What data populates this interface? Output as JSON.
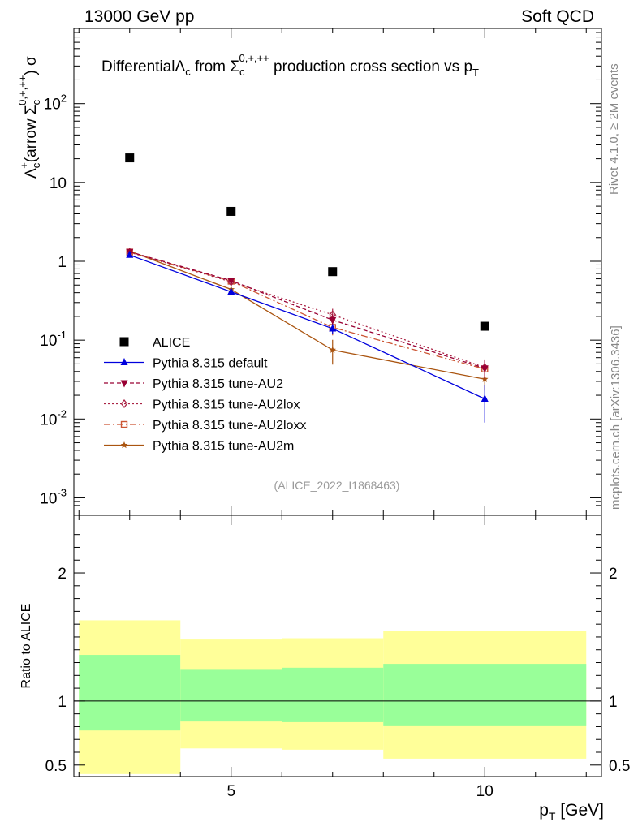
{
  "header": {
    "energy_label": "13000 GeV pp",
    "process_label": "Soft QCD"
  },
  "side_text": {
    "rivet": "Rivet 4.1.0, ≥ 2M events",
    "mcplots": "mcplots.cern.ch [arXiv:1306.3436]"
  },
  "colors": {
    "alice": "#000000",
    "default": "#0000dd",
    "au2": "#990033",
    "au2lox": "#aa2244",
    "au2loxx": "#cc5533",
    "au2m": "#aa5511",
    "band_inner": "#99ff99",
    "band_outer": "#ffff99"
  },
  "chart_data": {
    "type": "line",
    "title": {
      "prefix": "Differential",
      "lambda": "Λ",
      "lambda_sub": "c",
      "from": " from ",
      "sigma": "Σ",
      "sigma_sub": "c",
      "sigma_sup": "0,+,++",
      "suffix": " production cross section vs p",
      "suffix_sub": "T"
    },
    "ylabel": {
      "lambda": "Λ",
      "lambda_sub": "c",
      "lambda_sup": "+",
      "open": "(arrow ",
      "sigma": "Σ",
      "sigma_sub": "c",
      "sigma_sup": "0,+,++",
      "close": ") σ"
    },
    "xlabel": {
      "main": "p",
      "sub": "T",
      "unit": " [GeV]"
    },
    "ratio_ylabel": "Ratio to ALICE",
    "watermark": "(ALICE_2022_I1868463)",
    "xlim": [
      1.9,
      12.3
    ],
    "ylim": [
      0.0006,
      900
    ],
    "ratio_ylim": [
      0.41,
      2.45
    ],
    "x_major_ticks": [
      5,
      10
    ],
    "y_tick_labels": [
      {
        "value": 0.001,
        "base": "10",
        "exp": "-3"
      },
      {
        "value": 0.01,
        "base": "10",
        "exp": "-2"
      },
      {
        "value": 0.1,
        "base": "10",
        "exp": "-1"
      },
      {
        "value": 1,
        "base": "1",
        "exp": ""
      },
      {
        "value": 10,
        "base": "10",
        "exp": ""
      },
      {
        "value": 100,
        "base": "10",
        "exp": "2"
      }
    ],
    "ratio_ticks": [
      {
        "value": 0.5,
        "label": "0.5"
      },
      {
        "value": 1,
        "label": "1"
      },
      {
        "value": 2,
        "label": "2"
      }
    ],
    "ratio_bands": [
      {
        "x0": 2,
        "x1": 4,
        "inner": [
          0.77,
          1.36
        ],
        "outer": [
          0.43,
          1.63
        ]
      },
      {
        "x0": 4,
        "x1": 6,
        "inner": [
          0.84,
          1.25
        ],
        "outer": [
          0.63,
          1.48
        ]
      },
      {
        "x0": 6,
        "x1": 8,
        "inner": [
          0.835,
          1.26
        ],
        "outer": [
          0.62,
          1.49
        ]
      },
      {
        "x0": 8,
        "x1": 12,
        "inner": [
          0.81,
          1.29
        ],
        "outer": [
          0.55,
          1.55
        ]
      }
    ],
    "series": [
      {
        "key": "alice",
        "name": "ALICE",
        "marker": "square",
        "dash": "",
        "x": [
          3,
          5,
          7,
          10
        ],
        "y": [
          20.5,
          4.3,
          0.74,
          0.15
        ],
        "err": [
          0,
          0,
          0,
          0
        ]
      },
      {
        "key": "default",
        "name": "Pythia 8.315 default",
        "marker": "triangle-up",
        "dash": "",
        "x": [
          3,
          5,
          7,
          10
        ],
        "y": [
          1.2,
          0.41,
          0.14,
          0.018
        ],
        "err": [
          0.05,
          0.03,
          0.02,
          0.009
        ]
      },
      {
        "key": "au2",
        "name": "Pythia 8.315 tune-AU2",
        "marker": "triangle-down",
        "dash": "5,3",
        "x": [
          3,
          5,
          7,
          10
        ],
        "y": [
          1.32,
          0.57,
          0.18,
          0.044
        ],
        "err": [
          0.05,
          0.04,
          0.03,
          0.012
        ]
      },
      {
        "key": "au2lox",
        "name": "Pythia 8.315 tune-AU2lox",
        "marker": "diamond-open",
        "dash": "2,3",
        "x": [
          3,
          5,
          7,
          10
        ],
        "y": [
          1.3,
          0.55,
          0.21,
          0.045
        ],
        "err": [
          0.05,
          0.04,
          0.04,
          0.012
        ]
      },
      {
        "key": "au2loxx",
        "name": "Pythia 8.315 tune-AU2loxx",
        "marker": "square-open",
        "dash": "8,3,2,3",
        "x": [
          3,
          5,
          7,
          10
        ],
        "y": [
          1.31,
          0.56,
          0.145,
          0.043
        ],
        "err": [
          0.05,
          0.04,
          0.03,
          0.011
        ]
      },
      {
        "key": "au2m",
        "name": "Pythia 8.315 tune-AU2m",
        "marker": "star",
        "dash": "",
        "x": [
          3,
          5,
          7,
          10
        ],
        "y": [
          1.35,
          0.44,
          0.075,
          0.032
        ],
        "err": [
          0.05,
          0.03,
          0.026,
          0.009
        ]
      }
    ]
  }
}
